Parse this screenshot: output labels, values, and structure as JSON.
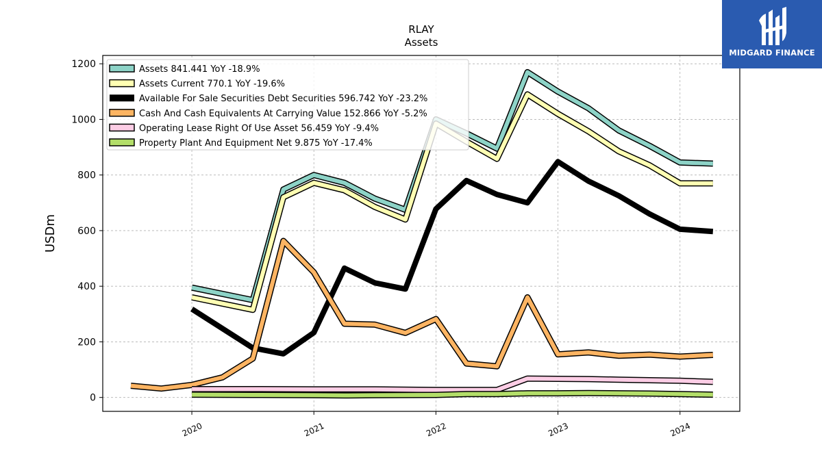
{
  "brand": {
    "name": "MIDGARD FINANCE",
    "color": "#2a5bb0"
  },
  "chart_data": {
    "type": "line",
    "title": "RLAY",
    "subtitle": "Assets",
    "xlabel": "",
    "ylabel": "USDm",
    "ylim": [
      -50,
      1230
    ],
    "xlim": [
      2019.27,
      2024.49
    ],
    "yticks": [
      0,
      200,
      400,
      600,
      800,
      1000,
      1200
    ],
    "xticks": [
      2020,
      2021,
      2022,
      2023,
      2024
    ],
    "xtick_labels": [
      "2020",
      "2021",
      "2022",
      "2023",
      "2024"
    ],
    "grid": true,
    "legend_position": "top-left",
    "series": [
      {
        "name": "Assets",
        "legend": "Assets  841.441 YoY -18.9%",
        "color": "#8dd3c7",
        "width": 6,
        "x": [
          2020.0,
          2020.5,
          2020.75,
          2021.0,
          2021.25,
          2021.5,
          2021.75,
          2022.0,
          2022.25,
          2022.5,
          2022.75,
          2023.0,
          2023.25,
          2023.5,
          2023.75,
          2024.0,
          2024.27
        ],
        "y": [
          395,
          350,
          748,
          800,
          772,
          715,
          675,
          1000,
          950,
          895,
          1170,
          1100,
          1040,
          960,
          905,
          845,
          841
        ]
      },
      {
        "name": "Assets Current",
        "legend": "Assets Current  770.1 YoY -19.6%",
        "color": "#ffffb3",
        "width": 6,
        "x": [
          2020.0,
          2020.5,
          2020.75,
          2021.0,
          2021.25,
          2021.5,
          2021.75,
          2022.0,
          2022.25,
          2022.5,
          2022.75,
          2023.0,
          2023.25,
          2023.5,
          2023.75,
          2024.0,
          2024.27
        ],
        "y": [
          360,
          315,
          720,
          772,
          745,
          685,
          640,
          985,
          920,
          858,
          1090,
          1020,
          957,
          885,
          835,
          770,
          770
        ]
      },
      {
        "name": "Available For Sale Securities Debt Securities",
        "legend": "Available For Sale Securities Debt Securities  596.742 YoY -23.2%",
        "color": "#000000",
        "width": 8,
        "outline": false,
        "x": [
          2020.0,
          2020.5,
          2020.75,
          2021.0,
          2021.25,
          2021.5,
          2021.75,
          2022.0,
          2022.25,
          2022.5,
          2022.75,
          2023.0,
          2023.25,
          2023.5,
          2023.75,
          2024.0,
          2024.27
        ],
        "y": [
          318,
          178,
          157,
          233,
          465,
          412,
          390,
          678,
          780,
          730,
          700,
          848,
          778,
          725,
          660,
          605,
          597
        ]
      },
      {
        "name": "Cash And Cash Equivalents At Carrying Value",
        "legend": "Cash And Cash Equivalents At Carrying Value  152.866 YoY -5.2%",
        "color": "#fdb462",
        "width": 6,
        "x": [
          2019.5,
          2019.75,
          2020.0,
          2020.25,
          2020.5,
          2020.75,
          2021.0,
          2021.25,
          2021.5,
          2021.75,
          2022.0,
          2022.25,
          2022.5,
          2022.75,
          2023.0,
          2023.25,
          2023.5,
          2023.75,
          2024.0,
          2024.27
        ],
        "y": [
          42,
          32,
          45,
          72,
          140,
          563,
          450,
          265,
          262,
          232,
          282,
          122,
          112,
          360,
          155,
          162,
          150,
          154,
          147,
          153
        ]
      },
      {
        "name": "Operating Lease Right Of Use Asset",
        "legend": "Operating Lease Right Of Use Asset  56.459 YoY -9.4%",
        "color": "#fccde5",
        "width": 6,
        "x": [
          2020.0,
          2020.5,
          2021.0,
          2021.5,
          2022.0,
          2022.5,
          2022.75,
          2023.0,
          2023.25,
          2023.5,
          2023.75,
          2024.0,
          2024.27
        ],
        "y": [
          30,
          30,
          29,
          29,
          27,
          27,
          68,
          67,
          66,
          64,
          62,
          60,
          56
        ]
      },
      {
        "name": "Property Plant And Equipment Net",
        "legend": "Property Plant And Equipment Net  9.875 YoY -17.4%",
        "color": "#b3de69",
        "width": 6,
        "x": [
          2020.0,
          2020.5,
          2021.0,
          2021.25,
          2021.5,
          2022.0,
          2022.25,
          2022.5,
          2022.75,
          2023.0,
          2023.25,
          2023.5,
          2023.75,
          2024.0,
          2024.27
        ],
        "y": [
          10,
          9,
          8,
          7,
          8,
          9,
          12,
          12,
          15,
          15,
          16,
          15,
          14,
          12,
          10
        ]
      }
    ]
  }
}
